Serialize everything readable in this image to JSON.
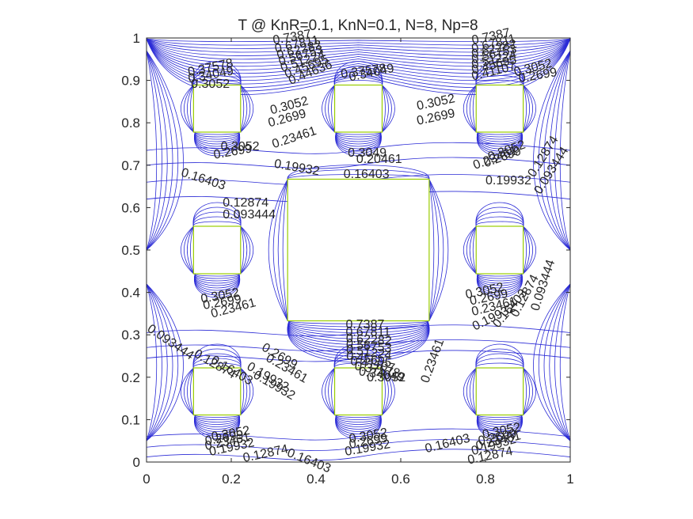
{
  "chart_data": {
    "type": "contour",
    "title": "T @ KnR=0.1, KnN=0.1, N=8, Np=8",
    "xlabel": "",
    "ylabel": "",
    "xlim": [
      0,
      1
    ],
    "ylim": [
      0,
      1
    ],
    "xticks": [
      "0",
      "0.2",
      "0.4",
      "0.6",
      "0.8",
      "1"
    ],
    "yticks": [
      "0",
      "0.1",
      "0.2",
      "0.3",
      "0.4",
      "0.5",
      "0.6",
      "0.7",
      "0.8",
      "0.9",
      "1"
    ],
    "grid": false,
    "legend": "none",
    "line_color": "#2b2bd6",
    "obstacle_color": "#99cc00",
    "obstacles": [
      {
        "name": "small-square",
        "x": [
          0.111,
          0.222
        ],
        "y": [
          0.778,
          0.889
        ]
      },
      {
        "name": "small-square",
        "x": [
          0.444,
          0.556
        ],
        "y": [
          0.778,
          0.889
        ]
      },
      {
        "name": "small-square",
        "x": [
          0.778,
          0.889
        ],
        "y": [
          0.778,
          0.889
        ]
      },
      {
        "name": "small-square",
        "x": [
          0.111,
          0.222
        ],
        "y": [
          0.444,
          0.556
        ]
      },
      {
        "name": "small-square",
        "x": [
          0.778,
          0.889
        ],
        "y": [
          0.444,
          0.556
        ]
      },
      {
        "name": "small-square",
        "x": [
          0.111,
          0.222
        ],
        "y": [
          0.111,
          0.222
        ]
      },
      {
        "name": "small-square",
        "x": [
          0.444,
          0.556
        ],
        "y": [
          0.111,
          0.222
        ]
      },
      {
        "name": "small-square",
        "x": [
          0.778,
          0.889
        ],
        "y": [
          0.111,
          0.222
        ]
      },
      {
        "name": "large-square",
        "x": [
          0.333,
          0.667
        ],
        "y": [
          0.333,
          0.667
        ]
      }
    ],
    "contour_levels": [
      0.093444,
      0.12874,
      0.16403,
      0.19932,
      0.23461,
      0.2699,
      0.3052,
      0.34049,
      0.37578,
      0.41107,
      0.44636,
      0.7387
    ],
    "contour_labels": [
      {
        "text": "0.093444",
        "x": 0.18,
        "y": 0.575,
        "angle": 0
      },
      {
        "text": "0.12874",
        "x": 0.18,
        "y": 0.603,
        "angle": 0
      },
      {
        "text": "0.16403",
        "x": 0.08,
        "y": 0.675,
        "angle": 18
      },
      {
        "text": "0.19932",
        "x": 0.3,
        "y": 0.695,
        "angle": 10
      },
      {
        "text": "0.2699",
        "x": 0.16,
        "y": 0.715,
        "angle": -10
      },
      {
        "text": "0.3052",
        "x": 0.175,
        "y": 0.735,
        "angle": 0
      },
      {
        "text": "0.23461",
        "x": 0.3,
        "y": 0.74,
        "angle": -18
      },
      {
        "text": "0.2699",
        "x": 0.29,
        "y": 0.79,
        "angle": -15
      },
      {
        "text": "0.3052",
        "x": 0.295,
        "y": 0.82,
        "angle": -15
      },
      {
        "text": "0.16403",
        "x": 0.465,
        "y": 0.67,
        "angle": 0
      },
      {
        "text": "0.20461",
        "x": 0.495,
        "y": 0.705,
        "angle": 0
      },
      {
        "text": "0.3049",
        "x": 0.475,
        "y": 0.72,
        "angle": 0
      },
      {
        "text": "0.3052",
        "x": 0.64,
        "y": 0.83,
        "angle": -12
      },
      {
        "text": "0.2699",
        "x": 0.64,
        "y": 0.795,
        "angle": -12
      },
      {
        "text": "0.3052",
        "x": 0.81,
        "y": 0.71,
        "angle": -20
      },
      {
        "text": "0.2699",
        "x": 0.8,
        "y": 0.695,
        "angle": -20
      },
      {
        "text": "0.23461",
        "x": 0.775,
        "y": 0.69,
        "angle": -20
      },
      {
        "text": "0.19932",
        "x": 0.8,
        "y": 0.655,
        "angle": 0
      },
      {
        "text": "0.12874",
        "x": 0.915,
        "y": 0.67,
        "angle": -58
      },
      {
        "text": "0.093444",
        "x": 0.93,
        "y": 0.63,
        "angle": -58
      },
      {
        "text": "0.37578",
        "x": 0.1,
        "y": 0.91,
        "angle": -12
      },
      {
        "text": "0.34049",
        "x": 0.1,
        "y": 0.895,
        "angle": -10
      },
      {
        "text": "0.3052",
        "x": 0.105,
        "y": 0.882,
        "angle": 0
      },
      {
        "text": "0.7387",
        "x": 0.3,
        "y": 0.985,
        "angle": -10
      },
      {
        "text": "0.67811",
        "x": 0.305,
        "y": 0.965,
        "angle": -12
      },
      {
        "text": "0.62282",
        "x": 0.31,
        "y": 0.95,
        "angle": -14
      },
      {
        "text": "0.56753",
        "x": 0.315,
        "y": 0.935,
        "angle": -16
      },
      {
        "text": "0.51224",
        "x": 0.32,
        "y": 0.92,
        "angle": -18
      },
      {
        "text": "0.45695",
        "x": 0.33,
        "y": 0.905,
        "angle": -20
      },
      {
        "text": "0.44636",
        "x": 0.34,
        "y": 0.89,
        "angle": -22
      },
      {
        "text": "0.34049",
        "x": 0.48,
        "y": 0.898,
        "angle": -12
      },
      {
        "text": "0.37578",
        "x": 0.46,
        "y": 0.905,
        "angle": -8
      },
      {
        "text": "0.7387",
        "x": 0.77,
        "y": 0.985,
        "angle": -12
      },
      {
        "text": "0.67811",
        "x": 0.77,
        "y": 0.965,
        "angle": -14
      },
      {
        "text": "0.62282",
        "x": 0.77,
        "y": 0.952,
        "angle": -14
      },
      {
        "text": "0.56753",
        "x": 0.77,
        "y": 0.94,
        "angle": -14
      },
      {
        "text": "0.51224",
        "x": 0.77,
        "y": 0.927,
        "angle": -14
      },
      {
        "text": "0.45695",
        "x": 0.77,
        "y": 0.915,
        "angle": -14
      },
      {
        "text": "0.41107",
        "x": 0.77,
        "y": 0.9,
        "angle": -14
      },
      {
        "text": "0.3052",
        "x": 0.87,
        "y": 0.91,
        "angle": -14
      },
      {
        "text": "0.2699",
        "x": 0.88,
        "y": 0.895,
        "angle": -10
      },
      {
        "text": "0.3052",
        "x": 0.13,
        "y": 0.375,
        "angle": -10
      },
      {
        "text": "0.2699",
        "x": 0.135,
        "y": 0.36,
        "angle": -10
      },
      {
        "text": "0.23461",
        "x": 0.155,
        "y": 0.34,
        "angle": -15
      },
      {
        "text": "0.093444",
        "x": 0.0,
        "y": 0.31,
        "angle": 34
      },
      {
        "text": "0.12874",
        "x": 0.11,
        "y": 0.25,
        "angle": 30
      },
      {
        "text": "0.16403",
        "x": 0.15,
        "y": 0.235,
        "angle": 30
      },
      {
        "text": "0.19932",
        "x": 0.235,
        "y": 0.22,
        "angle": 30
      },
      {
        "text": "0.2699",
        "x": 0.27,
        "y": 0.265,
        "angle": 30
      },
      {
        "text": "0.23461",
        "x": 0.28,
        "y": 0.24,
        "angle": 30
      },
      {
        "text": "0.19932",
        "x": 0.25,
        "y": 0.2,
        "angle": 30
      },
      {
        "text": "0.3052",
        "x": 0.755,
        "y": 0.385,
        "angle": -12
      },
      {
        "text": "0.2699",
        "x": 0.765,
        "y": 0.37,
        "angle": -12
      },
      {
        "text": "0.23461",
        "x": 0.77,
        "y": 0.345,
        "angle": -14
      },
      {
        "text": "0.19932",
        "x": 0.775,
        "y": 0.31,
        "angle": -26
      },
      {
        "text": "0.16403",
        "x": 0.83,
        "y": 0.315,
        "angle": -50
      },
      {
        "text": "0.12874",
        "x": 0.875,
        "y": 0.34,
        "angle": -62
      },
      {
        "text": "0.093444",
        "x": 0.925,
        "y": 0.355,
        "angle": -72
      },
      {
        "text": "0.23461",
        "x": 0.665,
        "y": 0.185,
        "angle": -70
      },
      {
        "text": "0.7387",
        "x": 0.47,
        "y": 0.315,
        "angle": 0
      },
      {
        "text": "0.67811",
        "x": 0.47,
        "y": 0.298,
        "angle": 0
      },
      {
        "text": "0.62282",
        "x": 0.47,
        "y": 0.283,
        "angle": 4
      },
      {
        "text": "0.56753",
        "x": 0.47,
        "y": 0.27,
        "angle": 6
      },
      {
        "text": "0.51224",
        "x": 0.47,
        "y": 0.257,
        "angle": 8
      },
      {
        "text": "0.45695",
        "x": 0.47,
        "y": 0.243,
        "angle": 10
      },
      {
        "text": "0.41107",
        "x": 0.48,
        "y": 0.23,
        "angle": 10
      },
      {
        "text": "0.37578",
        "x": 0.49,
        "y": 0.218,
        "angle": 10
      },
      {
        "text": "0.34049",
        "x": 0.5,
        "y": 0.205,
        "angle": 8
      },
      {
        "text": "0.3052",
        "x": 0.52,
        "y": 0.19,
        "angle": 0
      },
      {
        "text": "0.3052",
        "x": 0.155,
        "y": 0.05,
        "angle": -10
      },
      {
        "text": "0.2699",
        "x": 0.14,
        "y": 0.04,
        "angle": -10
      },
      {
        "text": "0.23461",
        "x": 0.14,
        "y": 0.028,
        "angle": -12
      },
      {
        "text": "0.19932",
        "x": 0.15,
        "y": 0.015,
        "angle": -12
      },
      {
        "text": "0.12874",
        "x": 0.23,
        "y": 0.0,
        "angle": -12
      },
      {
        "text": "0.16403",
        "x": 0.33,
        "y": 0.015,
        "angle": 22
      },
      {
        "text": "0.19932",
        "x": 0.47,
        "y": 0.015,
        "angle": -10
      },
      {
        "text": "0.3052",
        "x": 0.48,
        "y": 0.045,
        "angle": -10
      },
      {
        "text": "0.2699",
        "x": 0.48,
        "y": 0.032,
        "angle": -10
      },
      {
        "text": "0.3052",
        "x": 0.795,
        "y": 0.055,
        "angle": -12
      },
      {
        "text": "0.2699",
        "x": 0.785,
        "y": 0.04,
        "angle": -12
      },
      {
        "text": "0.23461",
        "x": 0.78,
        "y": 0.028,
        "angle": -14
      },
      {
        "text": "0.19932",
        "x": 0.77,
        "y": 0.016,
        "angle": -16
      },
      {
        "text": "0.16403",
        "x": 0.66,
        "y": 0.022,
        "angle": -14
      },
      {
        "text": "0.12874",
        "x": 0.76,
        "y": -0.005,
        "angle": -12
      }
    ]
  }
}
